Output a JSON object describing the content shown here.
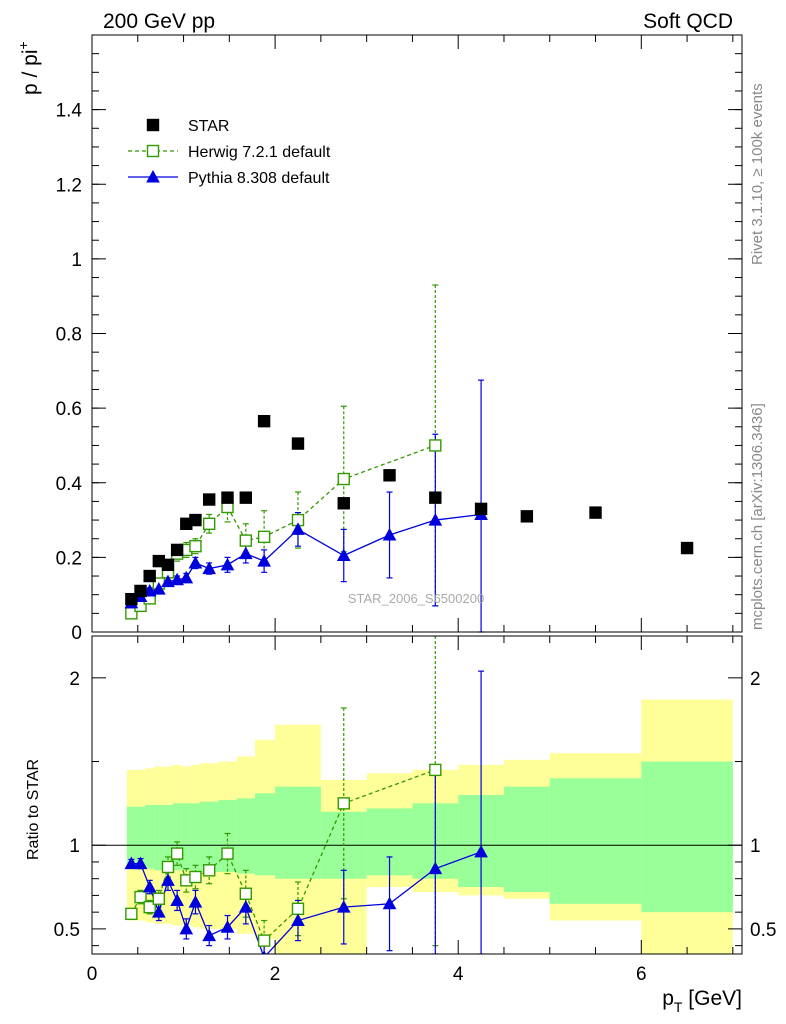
{
  "header": {
    "left": "200 GeV pp",
    "right": "Soft QCD"
  },
  "side_labels": {
    "rivet": "Rivet 3.1.10, ≥ 100k events",
    "mcplots": "mcplots.cern.ch [arXiv:1306.3436]"
  },
  "watermark": "STAR_2006_S6500200",
  "colors": {
    "star": "#000000",
    "herwig": "#339900",
    "pythia": "#0000dd",
    "band_outer": "#ffff99",
    "band_inner": "#99ff99"
  },
  "chart_data": [
    {
      "type": "scatter",
      "ylabel_main": "p / pi",
      "ylabel_sup": "+",
      "xlim": [
        0,
        7.1
      ],
      "ylim": [
        0,
        1.6
      ],
      "yticks": [
        0,
        0.2,
        0.4,
        0.6,
        0.8,
        1,
        1.2,
        1.4
      ],
      "ytick_labels": [
        "0",
        "0.2",
        "0.4",
        "0.6",
        "0.8",
        "1",
        "1.2",
        "1.4"
      ],
      "legend_position": "top-left",
      "series": [
        {
          "name": "STAR",
          "style": "black-filled-square",
          "x": [
            0.43,
            0.53,
            0.63,
            0.73,
            0.83,
            0.93,
            1.03,
            1.13,
            1.28,
            1.48,
            1.68,
            1.88,
            2.25,
            2.75,
            3.25,
            3.75,
            4.25,
            4.75,
            5.5,
            6.5
          ],
          "y": [
            0.088,
            0.11,
            0.15,
            0.19,
            0.18,
            0.22,
            0.29,
            0.3,
            0.355,
            0.36,
            0.36,
            0.565,
            0.505,
            0.345,
            0.42,
            0.36,
            0.33,
            0.31,
            0.32,
            0.225
          ]
        },
        {
          "name": "Herwig 7.2.1 default",
          "style": "green-open-square-dashed",
          "x": [
            0.43,
            0.53,
            0.63,
            0.73,
            0.83,
            0.93,
            1.03,
            1.13,
            1.28,
            1.48,
            1.68,
            1.88,
            2.25,
            2.75,
            3.75
          ],
          "y": [
            0.05,
            0.07,
            0.09,
            0.13,
            0.16,
            0.21,
            0.22,
            0.23,
            0.29,
            0.335,
            0.245,
            0.255,
            0.3,
            0.41,
            0.5
          ],
          "err": [
            0.008,
            0.01,
            0.01,
            0.012,
            0.015,
            0.02,
            0.02,
            0.02,
            0.025,
            0.04,
            0.045,
            0.07,
            0.075,
            0.195,
            0.43
          ]
        },
        {
          "name": "Pythia 8.308 default",
          "style": "blue-filled-triangle-solid",
          "x": [
            0.43,
            0.53,
            0.63,
            0.73,
            0.83,
            0.93,
            1.03,
            1.13,
            1.28,
            1.48,
            1.68,
            1.88,
            2.25,
            2.75,
            3.25,
            3.75,
            4.25
          ],
          "y": [
            0.078,
            0.095,
            0.11,
            0.115,
            0.135,
            0.14,
            0.145,
            0.185,
            0.17,
            0.18,
            0.21,
            0.19,
            0.275,
            0.205,
            0.26,
            0.3,
            0.315
          ],
          "err": [
            0.006,
            0.008,
            0.008,
            0.01,
            0.01,
            0.01,
            0.012,
            0.015,
            0.015,
            0.02,
            0.025,
            0.03,
            0.045,
            0.07,
            0.115,
            0.23,
            0.36
          ]
        }
      ]
    },
    {
      "type": "scatter",
      "ylabel": "Ratio to STAR",
      "xlabel_main": "p",
      "xlabel_sub": "T",
      "xlabel_unit": " [GeV]",
      "xlim": [
        0,
        7.1
      ],
      "ylim": [
        0.35,
        2.25
      ],
      "yticks": [
        0.5,
        1,
        2
      ],
      "ytick_labels": [
        "0.5",
        "1",
        "2"
      ],
      "xticks": [
        0,
        2,
        4,
        6
      ],
      "xtick_labels": [
        "0",
        "2",
        "4",
        "6"
      ],
      "reference_line": 1,
      "bands": {
        "edges": [
          0.38,
          0.48,
          0.58,
          0.68,
          0.78,
          0.88,
          0.98,
          1.08,
          1.18,
          1.38,
          1.58,
          1.78,
          2.0,
          2.5,
          3.0,
          3.5,
          4.0,
          4.5,
          5.0,
          6.0,
          7.0
        ],
        "outer_lo": [
          0.55,
          0.55,
          0.54,
          0.53,
          0.53,
          0.52,
          0.52,
          0.51,
          0.5,
          0.5,
          0.47,
          0.44,
          0.35,
          0.35,
          0.75,
          0.72,
          0.7,
          0.68,
          0.55,
          0.35
        ],
        "outer_hi": [
          1.45,
          1.45,
          1.46,
          1.47,
          1.47,
          1.48,
          1.47,
          1.48,
          1.49,
          1.5,
          1.53,
          1.63,
          1.72,
          1.39,
          1.43,
          1.45,
          1.48,
          1.51,
          1.55,
          1.87
        ],
        "inner_lo": [
          0.86,
          0.86,
          0.86,
          0.85,
          0.85,
          0.85,
          0.85,
          0.84,
          0.84,
          0.84,
          0.83,
          0.82,
          0.8,
          0.8,
          0.82,
          0.8,
          0.75,
          0.72,
          0.65,
          0.6
        ],
        "inner_hi": [
          1.23,
          1.23,
          1.24,
          1.24,
          1.24,
          1.25,
          1.25,
          1.25,
          1.26,
          1.27,
          1.28,
          1.31,
          1.35,
          1.2,
          1.22,
          1.25,
          1.3,
          1.35,
          1.4,
          1.5
        ]
      },
      "series": [
        {
          "name": "Herwig 7.2.1 default",
          "x": [
            0.43,
            0.53,
            0.63,
            0.73,
            0.83,
            0.93,
            1.03,
            1.13,
            1.28,
            1.48,
            1.68,
            1.88,
            2.25,
            2.75,
            3.75
          ],
          "y": [
            0.59,
            0.69,
            0.63,
            0.68,
            0.87,
            0.95,
            0.79,
            0.81,
            0.85,
            0.95,
            0.71,
            0.43,
            0.62,
            1.25,
            1.45
          ],
          "err": [
            0.03,
            0.04,
            0.04,
            0.05,
            0.06,
            0.07,
            0.07,
            0.07,
            0.08,
            0.12,
            0.14,
            0.12,
            0.16,
            0.57,
            1.05
          ]
        },
        {
          "name": "Pythia 8.308 default",
          "x": [
            0.43,
            0.53,
            0.63,
            0.73,
            0.83,
            0.93,
            1.03,
            1.13,
            1.28,
            1.48,
            1.68,
            1.88,
            2.25,
            2.75,
            3.25,
            3.75,
            4.25
          ],
          "y": [
            0.89,
            0.89,
            0.75,
            0.6,
            0.79,
            0.67,
            0.5,
            0.66,
            0.46,
            0.51,
            0.63,
            0.33,
            0.55,
            0.63,
            0.65,
            0.86,
            0.96
          ],
          "err": [
            0.025,
            0.03,
            0.04,
            0.05,
            0.06,
            0.06,
            0.06,
            0.07,
            0.06,
            0.07,
            0.1,
            0.12,
            0.12,
            0.22,
            0.28,
            0.62,
            1.08
          ]
        }
      ]
    }
  ]
}
